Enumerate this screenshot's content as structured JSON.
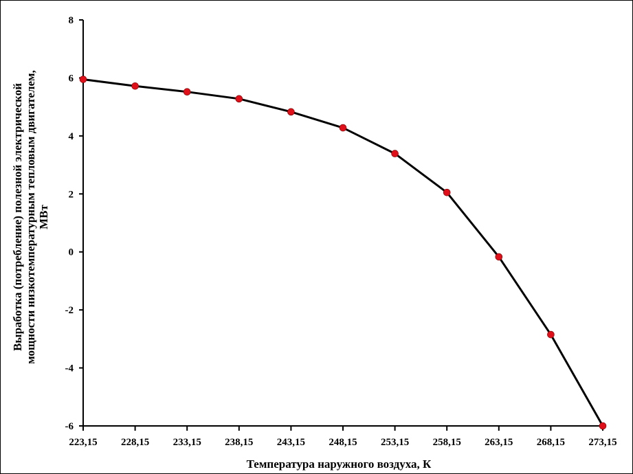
{
  "chart_data": {
    "type": "line",
    "title": "",
    "xlabel": "Температура наружного воздуха, К",
    "ylabel_lines": [
      "Выработка (потребление) полезной электрической",
      "мощности низкотемпературным тепловым двигателем,",
      "МВт"
    ],
    "categories": [
      "223,15",
      "228,15",
      "233,15",
      "238,15",
      "243,15",
      "248,15",
      "253,15",
      "258,15",
      "263,15",
      "268,15",
      "273,15"
    ],
    "x": [
      223.15,
      228.15,
      233.15,
      238.15,
      243.15,
      248.15,
      253.15,
      258.15,
      263.15,
      268.15,
      273.15
    ],
    "series": [
      {
        "values": [
          5.95,
          5.72,
          5.52,
          5.28,
          4.83,
          4.28,
          3.39,
          2.05,
          -0.17,
          -2.85,
          -6.0
        ],
        "line_color": "#000000",
        "marker_color": "#e0101a"
      }
    ],
    "ylim": [
      -6,
      8
    ],
    "yticks": [
      -6,
      -4,
      -2,
      0,
      2,
      4,
      6,
      8
    ],
    "ytick_labels": [
      "-6",
      "-4",
      "-2",
      "0",
      "2",
      "4",
      "6",
      "8"
    ],
    "grid": false,
    "legend": "none"
  }
}
